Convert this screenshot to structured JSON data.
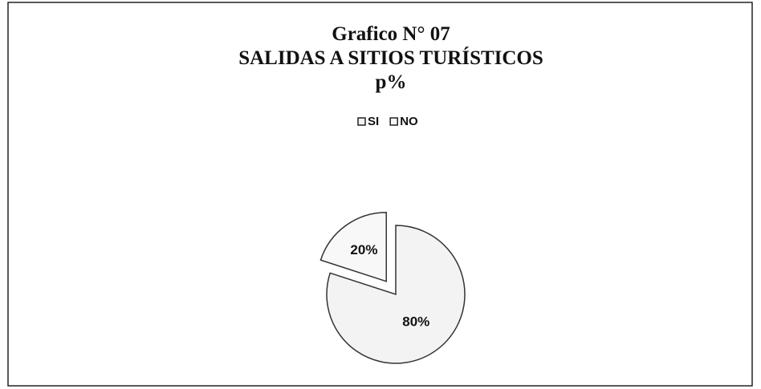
{
  "chart_data": {
    "type": "pie",
    "title": [
      "Grafico N° 07",
      "SALIDAS A SITIOS TURÍSTICOS",
      "p%"
    ],
    "categories": [
      "SI",
      "NO"
    ],
    "values": [
      80,
      20
    ],
    "value_labels": [
      "80%",
      "20%"
    ],
    "colors": [
      "#f3f3f3",
      "#f8f8f8"
    ],
    "legend": "top"
  }
}
